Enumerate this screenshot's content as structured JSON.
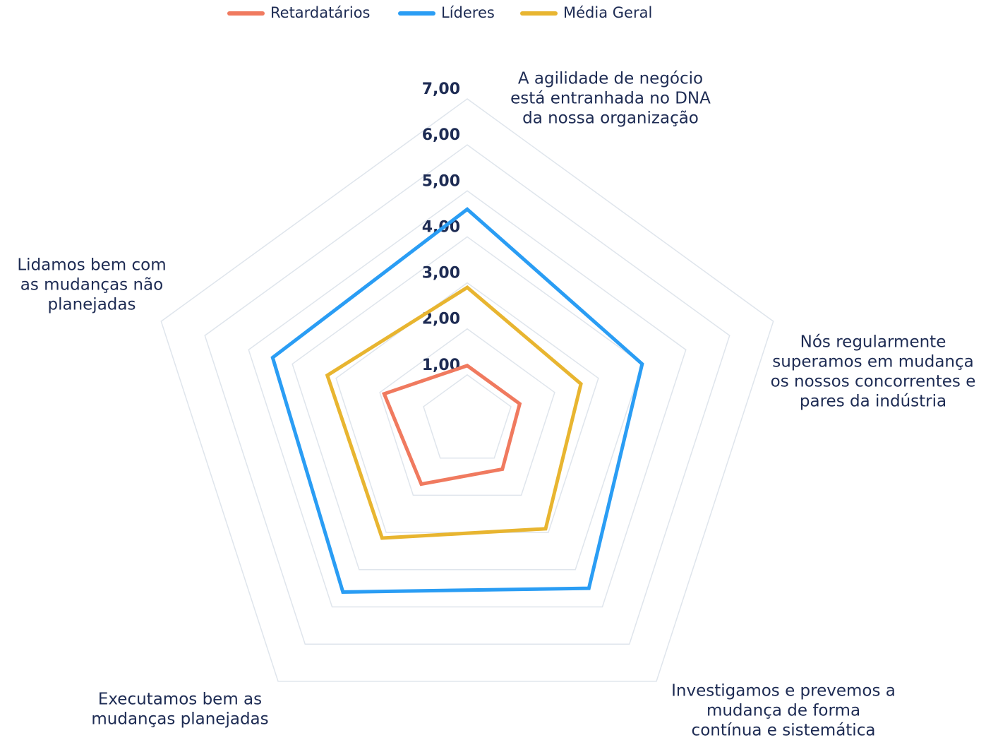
{
  "chart_data": {
    "type": "radar",
    "categories": [
      [
        "A agilidade de negócio",
        "está entranhada no DNA",
        "da nossa organização"
      ],
      [
        "Nós regularmente",
        "superamos em mudança",
        "os nossos concorrentes e",
        "pares da indústria"
      ],
      [
        "Investigamos e prevemos a",
        "mudança de forma",
        "contínua e sistemática"
      ],
      [
        "Executamos bem as",
        "mudanças planejadas"
      ],
      [
        "Lidamos bem com",
        "as mudanças não",
        "planejadas"
      ]
    ],
    "series": [
      {
        "name": "Retardatários",
        "color": "#f07a5f",
        "values": [
          1.2,
          1.2,
          1.3,
          1.7,
          1.9
        ]
      },
      {
        "name": "Líderes",
        "color": "#2a9df4",
        "values": [
          4.6,
          4.0,
          4.5,
          4.6,
          4.45
        ]
      },
      {
        "name": "Média Geral",
        "color": "#e8b530",
        "values": [
          2.9,
          2.6,
          2.9,
          3.15,
          3.2
        ]
      }
    ],
    "rlim": [
      0,
      7
    ],
    "rticks": [
      {
        "value": 1,
        "label": "1,00"
      },
      {
        "value": 2,
        "label": "2,00"
      },
      {
        "value": 3,
        "label": "3,00"
      },
      {
        "value": 4,
        "label": "4,00"
      },
      {
        "value": 5,
        "label": "5,00"
      },
      {
        "value": 6,
        "label": "6,00"
      },
      {
        "value": 7,
        "label": "7,00"
      }
    ],
    "grid": true,
    "legend": "top"
  }
}
